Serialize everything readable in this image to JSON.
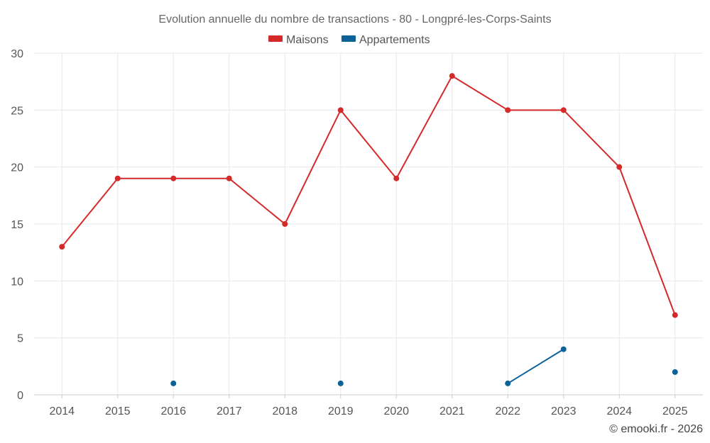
{
  "chart_data": {
    "type": "line",
    "title": "Evolution annuelle du nombre de transactions - 80 - Longpré-les-Corps-Saints",
    "categories": [
      "2014",
      "2015",
      "2016",
      "2017",
      "2018",
      "2019",
      "2020",
      "2021",
      "2022",
      "2023",
      "2024",
      "2025"
    ],
    "series": [
      {
        "name": "Maisons",
        "color": "#d42a2a",
        "values": [
          13,
          19,
          19,
          19,
          15,
          25,
          19,
          28,
          25,
          25,
          20,
          7
        ]
      },
      {
        "name": "Appartements",
        "color": "#0b6299",
        "values": [
          null,
          null,
          1,
          null,
          null,
          1,
          null,
          null,
          1,
          4,
          null,
          2
        ]
      }
    ],
    "ylim": [
      0,
      30
    ],
    "yticks": [
      0,
      5,
      10,
      15,
      20,
      25,
      30
    ],
    "xlabel": "",
    "ylabel": "",
    "grid": true,
    "legend": "top-center"
  },
  "credit": "© emooki.fr - 2026"
}
